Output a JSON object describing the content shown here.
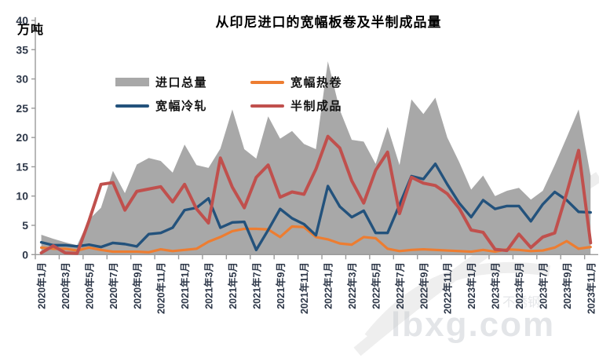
{
  "watermark": {
    "text": "lbxg.com",
    "sub": "不锈钢"
  },
  "chart_data": {
    "type": "combo-area-line",
    "title": "从印尼进口的宽幅板卷及半制成品量",
    "unit_label": "万吨",
    "x_start": "2020年1月",
    "x_end": "2023年11月",
    "x_interval_months": 1,
    "x_tick_labels": [
      "2020年1月",
      "2020年3月",
      "2020年5月",
      "2020年7月",
      "2020年9月",
      "2020年11月",
      "2021年1月",
      "2021年3月",
      "2021年5月",
      "2021年7月",
      "2021年9月",
      "2021年11月",
      "2022年1月",
      "2022年3月",
      "2022年5月",
      "2022年7月",
      "2022年9月",
      "2022年11月",
      "2023年1月",
      "2023年3月",
      "2023年5月",
      "2023年7月",
      "2023年9月",
      "2023年11月"
    ],
    "y_ticks": [
      0,
      5,
      10,
      15,
      20,
      25,
      30,
      35,
      40
    ],
    "ylim": [
      0,
      40
    ],
    "gridlines": false,
    "legend_position": "top-left-two-columns",
    "axis_color": "#9a9a9a",
    "tick_label_color": "#2d3748",
    "series": [
      {
        "name": "进口总量",
        "type": "area",
        "color": "#a8a8a8",
        "values": [
          3.4,
          2.7,
          2.1,
          1.6,
          6.0,
          8.0,
          14.3,
          10.5,
          15.4,
          16.5,
          16.0,
          14.0,
          18.8,
          15.3,
          14.8,
          18.1,
          24.8,
          18.0,
          16.4,
          23.6,
          19.8,
          21.1,
          18.9,
          18.0,
          33.0,
          24.7,
          19.6,
          19.3,
          15.5,
          21.8,
          15.3,
          26.5,
          24.0,
          26.8,
          20.0,
          15.8,
          11.1,
          13.5,
          10.0,
          10.9,
          11.4,
          9.4,
          10.9,
          15.3,
          20.0,
          24.8,
          13.5
        ]
      },
      {
        "name": "宽幅热卷",
        "type": "line",
        "color": "#ED7D31",
        "values": [
          1.2,
          1.0,
          1.0,
          0.7,
          1.2,
          0.8,
          0.5,
          0.5,
          0.5,
          0.4,
          0.9,
          0.6,
          0.8,
          1.0,
          2.2,
          3.0,
          4.0,
          4.4,
          4.4,
          4.3,
          3.0,
          4.8,
          4.7,
          3.0,
          2.6,
          1.9,
          1.7,
          3.0,
          2.8,
          1.0,
          0.6,
          0.8,
          0.9,
          0.8,
          0.7,
          0.6,
          0.5,
          0.8,
          0.5,
          0.9,
          0.8,
          0.6,
          0.7,
          1.2,
          2.3,
          1.0,
          1.3
        ]
      },
      {
        "name": "宽幅冷轧",
        "type": "line",
        "color": "#23527C",
        "values": [
          2.1,
          1.6,
          1.6,
          1.4,
          1.7,
          1.3,
          2.0,
          1.8,
          1.4,
          3.5,
          3.7,
          4.6,
          7.6,
          8.0,
          9.6,
          4.6,
          5.5,
          5.6,
          0.8,
          4.2,
          7.8,
          6.2,
          5.2,
          3.3,
          11.7,
          8.2,
          6.4,
          7.5,
          3.7,
          3.7,
          8.5,
          13.4,
          12.9,
          15.5,
          12.0,
          8.8,
          6.4,
          9.3,
          7.8,
          8.3,
          8.3,
          5.7,
          8.6,
          10.7,
          9.3,
          7.3,
          7.2
        ]
      },
      {
        "name": "半制成品",
        "type": "line",
        "color": "#C0504D",
        "values": [
          0.3,
          1.5,
          0.3,
          0.2,
          5.8,
          12.0,
          12.3,
          7.6,
          10.8,
          11.2,
          11.6,
          9.0,
          12.0,
          7.8,
          5.4,
          16.5,
          11.5,
          8.0,
          13.2,
          15.3,
          9.8,
          10.7,
          10.3,
          14.6,
          20.2,
          18.2,
          12.6,
          8.8,
          14.4,
          17.5,
          7.0,
          13.2,
          12.2,
          11.8,
          10.4,
          7.9,
          4.2,
          3.8,
          0.9,
          0.7,
          3.5,
          1.2,
          3.0,
          3.7,
          10.5,
          17.8,
          2.0
        ]
      }
    ]
  }
}
